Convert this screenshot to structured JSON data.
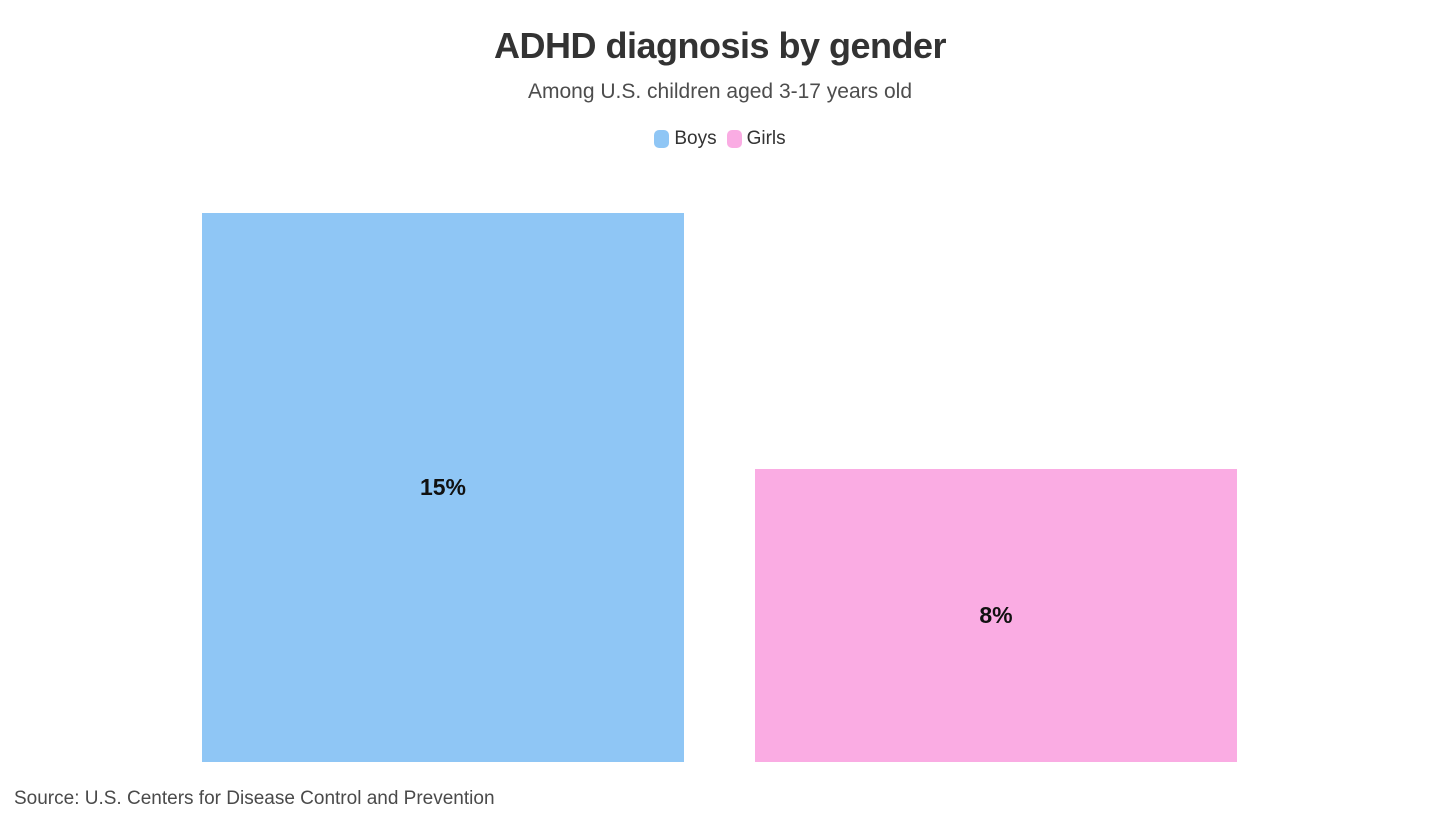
{
  "chart_data": {
    "type": "bar",
    "title": "ADHD diagnosis by gender",
    "subtitle": "Among U.S. children aged 3-17 years old",
    "categories": [
      "Boys",
      "Girls"
    ],
    "values": [
      15,
      8
    ],
    "value_labels": [
      "15%",
      "8%"
    ],
    "series_colors": [
      "#8FC6F5",
      "#FAACE3"
    ],
    "unit": "%",
    "ylim": [
      0,
      15
    ],
    "grid": false,
    "legend_position": "top",
    "orientation": "vertical",
    "source": "Source: U.S. Centers for Disease Control and Prevention"
  },
  "legend": {
    "items": [
      {
        "label": "Boys",
        "color": "#8FC6F5"
      },
      {
        "label": "Girls",
        "color": "#FAACE3"
      }
    ]
  },
  "colors": {
    "background": "#ffffff",
    "title_text": "#333333",
    "subtitle_text": "#4d4d4d",
    "value_label_text": "#111111",
    "source_text": "#4a4a4a"
  }
}
